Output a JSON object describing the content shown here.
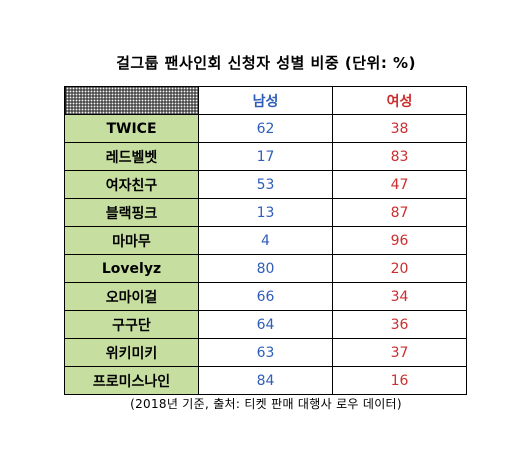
{
  "chart_data": {
    "type": "table",
    "title": "걸그룹 팬사인회 신청자 성별 비중 (단위: %)",
    "columns": [
      "남성",
      "여성"
    ],
    "categories": [
      "TWICE",
      "레드벨벳",
      "여자친구",
      "블랙핑크",
      "마마무",
      "Lovelyz",
      "오마이걸",
      "구구단",
      "위키미키",
      "프로미스나인"
    ],
    "series": [
      {
        "name": "남성",
        "values": [
          62,
          17,
          53,
          13,
          4,
          80,
          66,
          64,
          63,
          84
        ]
      },
      {
        "name": "여성",
        "values": [
          38,
          83,
          47,
          87,
          96,
          20,
          34,
          36,
          37,
          16
        ]
      }
    ],
    "source": "(2018년 기준, 출처: 티켓 판매 대행사 로우 데이터)"
  },
  "colors": {
    "male": "#2f5db8",
    "female": "#cc2e2e",
    "name_fill": "#c6dea0"
  }
}
